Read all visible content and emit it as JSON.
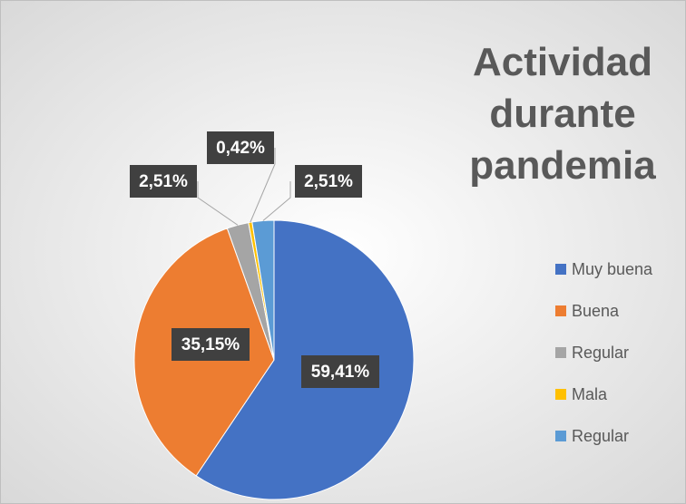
{
  "chart_data": {
    "type": "pie",
    "title": "Actividad durante pandemia",
    "categories": [
      "Muy buena",
      "Buena",
      "Regular",
      "Mala",
      "Regular"
    ],
    "values": [
      59.41,
      35.15,
      2.51,
      0.42,
      2.51
    ],
    "value_labels": [
      "59,41%",
      "35,15%",
      "2,51%",
      "0,42%",
      "2,51%"
    ],
    "series": [
      {
        "colors": [
          "#4472c4",
          "#ed7d31",
          "#a5a5a5",
          "#ffc000",
          "#5b9bd5"
        ]
      }
    ],
    "legend": "right"
  }
}
